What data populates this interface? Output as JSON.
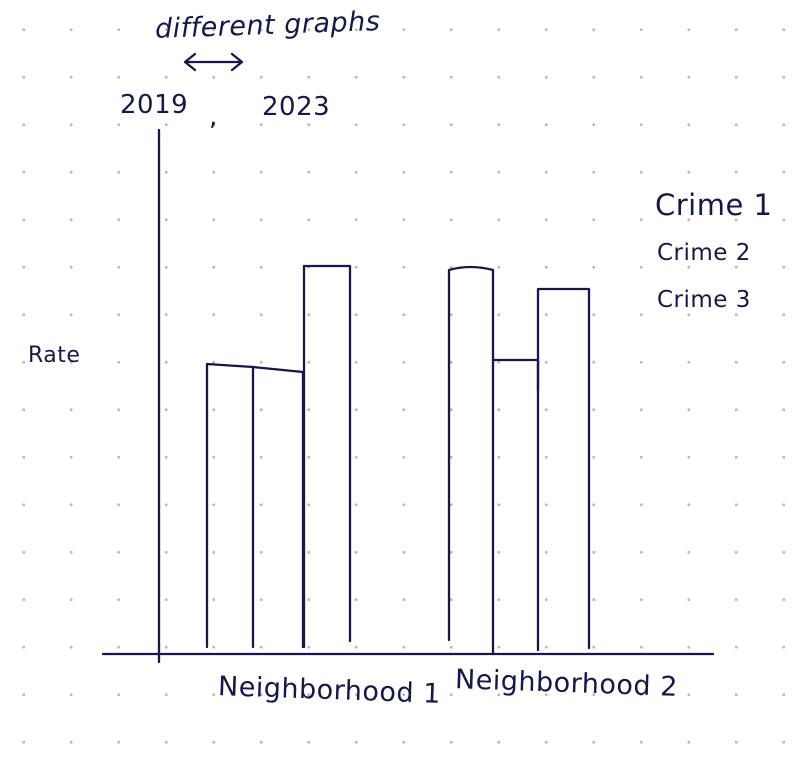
{
  "note": {
    "title": "different graphs",
    "arrow_icon": "double-headed-arrow"
  },
  "years": {
    "first": "2019",
    "separator": ",",
    "second": "2023"
  },
  "axes": {
    "ylabel": "Rate"
  },
  "legend": [
    "Crime 1",
    "Crime 2",
    "Crime 3"
  ],
  "categories": [
    "Neighborhood 1",
    "Neighborhood 2"
  ],
  "ink_color": "#14184a",
  "grid_dot_color": "#b5b5b5"
}
